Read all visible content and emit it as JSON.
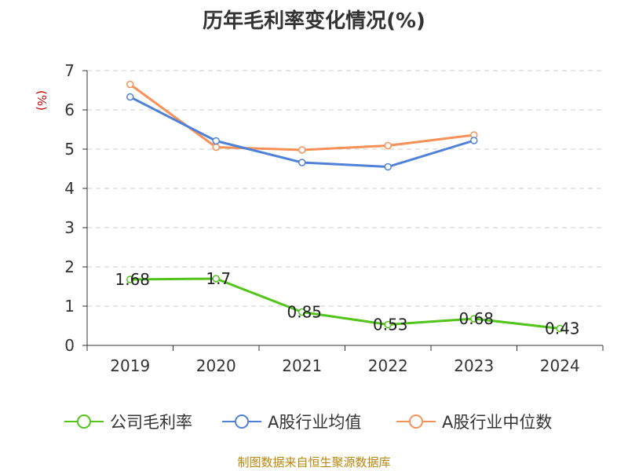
{
  "title": "历年毛利率变化情况(%)",
  "source": "制图数据来自恒生聚源数据库",
  "colors": {
    "company": "#52c41a",
    "industry_avg": "#4f81d8",
    "industry_median": "#f79158",
    "grid": "#cccccc",
    "axis": "#333333",
    "ylabel": "#cc0000"
  },
  "chart_data": {
    "type": "line",
    "title": "历年毛利率变化情况(%)",
    "xlabel": "",
    "ylabel": "(%)",
    "categories": [
      "2019",
      "2020",
      "2021",
      "2022",
      "2023",
      "2024"
    ],
    "ylim": [
      0,
      7
    ],
    "yticks": [
      "0",
      "1",
      "2",
      "3",
      "4",
      "5",
      "6",
      "7"
    ],
    "grid": "horizontal dashed",
    "legend_position": "bottom",
    "series": [
      {
        "name": "公司毛利率",
        "color": "#52c41a",
        "values": [
          1.68,
          1.7,
          0.85,
          0.53,
          0.68,
          0.43
        ],
        "labels": [
          "1.68",
          "1.7",
          "0.85",
          "0.53",
          "0.68",
          "0.43"
        ]
      },
      {
        "name": "A股行业均值",
        "color": "#4f81d8",
        "values": [
          6.33,
          5.21,
          4.66,
          4.55,
          5.22,
          null
        ]
      },
      {
        "name": "A股行业中位数",
        "color": "#f79158",
        "values": [
          6.65,
          5.05,
          4.98,
          5.09,
          5.36,
          null
        ]
      }
    ]
  }
}
